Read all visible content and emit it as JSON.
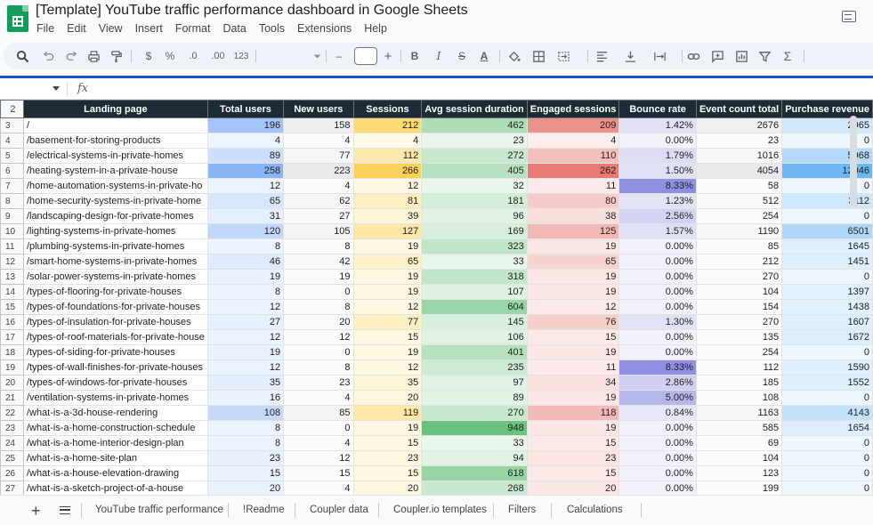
{
  "app": {
    "title": "[Template] YouTube traffic performance dashboard in Google Sheets",
    "menu": [
      "File",
      "Edit",
      "View",
      "Insert",
      "Format",
      "Data",
      "Tools",
      "Extensions",
      "Help"
    ]
  },
  "toolbar": {
    "icons": [
      "search-icon",
      "undo-icon",
      "redo-icon",
      "print-icon",
      "paint-format-icon",
      "currency-icon",
      "percent-icon",
      "decrease-decimal-icon",
      "increase-decimal-icon",
      "number-format-icon",
      "font-dropdown-icon",
      "zoom-minus-icon",
      "font-size-field",
      "zoom-plus-icon",
      "bold-icon",
      "italic-icon",
      "strikethrough-icon",
      "text-color-icon",
      "fill-color-icon",
      "borders-icon",
      "merge-icon",
      "align-icon",
      "valign-icon",
      "text-wrap-icon",
      "link-icon",
      "comment-icon",
      "chart-icon",
      "filter-icon",
      "functions-icon"
    ],
    "labels": {
      "currency": "$",
      "percent": "%",
      "dec_decimal": ".0",
      "inc_decimal": ".00",
      "number_format": "123",
      "minus": "–",
      "plus": "+",
      "bold": "B",
      "italic": "I",
      "strike": "S",
      "textcolor": "A",
      "sigma": "Σ"
    }
  },
  "formula_bar": {
    "fx": "fx"
  },
  "sheet": {
    "header_row_num": "2",
    "columns": [
      "Landing page",
      "Total users",
      "New users",
      "Sessions",
      "Avg session duration",
      "Engaged sessions",
      "Bounce rate",
      "Event count total",
      "Purchase revenue"
    ],
    "rows": [
      {
        "n": "3",
        "cells": [
          "/",
          "196",
          "158",
          "212",
          "462",
          "209",
          "1.42%",
          "2676",
          "2965"
        ]
      },
      {
        "n": "4",
        "cells": [
          "/basement-for-storing-products",
          "4",
          "4",
          "4",
          "23",
          "4",
          "0.00%",
          "23",
          "0"
        ]
      },
      {
        "n": "5",
        "cells": [
          "/electrical-systems-in-private-homes",
          "89",
          "77",
          "112",
          "272",
          "110",
          "1.79%",
          "1016",
          "5968"
        ]
      },
      {
        "n": "6",
        "cells": [
          "/heating-system-in-a-private-house",
          "258",
          "223",
          "266",
          "405",
          "262",
          "1.50%",
          "4054",
          "12946"
        ]
      },
      {
        "n": "7",
        "cells": [
          "/home-automation-systems-in-private-ho",
          "12",
          "4",
          "12",
          "32",
          "11",
          "8.33%",
          "58",
          "0"
        ]
      },
      {
        "n": "8",
        "cells": [
          "/home-security-systems-in-private-home",
          "65",
          "62",
          "81",
          "181",
          "80",
          "1.23%",
          "512",
          "3112"
        ]
      },
      {
        "n": "9",
        "cells": [
          "/landscaping-design-for-private-homes",
          "31",
          "27",
          "39",
          "96",
          "38",
          "2.56%",
          "254",
          "0"
        ]
      },
      {
        "n": "10",
        "cells": [
          "/lighting-systems-in-private-homes",
          "120",
          "105",
          "127",
          "169",
          "125",
          "1.57%",
          "1190",
          "6501"
        ]
      },
      {
        "n": "11",
        "cells": [
          "/plumbing-systems-in-private-homes",
          "8",
          "8",
          "19",
          "323",
          "19",
          "0.00%",
          "85",
          "1645"
        ]
      },
      {
        "n": "12",
        "cells": [
          "/smart-home-systems-in-private-homes",
          "46",
          "42",
          "65",
          "33",
          "65",
          "0.00%",
          "212",
          "1451"
        ]
      },
      {
        "n": "13",
        "cells": [
          "/solar-power-systems-in-private-homes",
          "19",
          "19",
          "19",
          "318",
          "19",
          "0.00%",
          "270",
          "0"
        ]
      },
      {
        "n": "14",
        "cells": [
          "/types-of-flooring-for-private-houses",
          "8",
          "0",
          "19",
          "107",
          "19",
          "0.00%",
          "104",
          "1397"
        ]
      },
      {
        "n": "15",
        "cells": [
          "/types-of-foundations-for-private-houses",
          "12",
          "8",
          "12",
          "604",
          "12",
          "0.00%",
          "154",
          "1438"
        ]
      },
      {
        "n": "16",
        "cells": [
          "/types-of-insulation-for-private-houses",
          "27",
          "20",
          "77",
          "145",
          "76",
          "1.30%",
          "270",
          "1607"
        ]
      },
      {
        "n": "17",
        "cells": [
          "/types-of-roof-materials-for-private-house",
          "12",
          "12",
          "15",
          "106",
          "15",
          "0.00%",
          "135",
          "1672"
        ]
      },
      {
        "n": "18",
        "cells": [
          "/types-of-siding-for-private-houses",
          "19",
          "0",
          "19",
          "401",
          "19",
          "0.00%",
          "254",
          "0"
        ]
      },
      {
        "n": "19",
        "cells": [
          "/types-of-wall-finishes-for-private-houses",
          "12",
          "8",
          "12",
          "235",
          "11",
          "8.33%",
          "112",
          "1590"
        ]
      },
      {
        "n": "20",
        "cells": [
          "/types-of-windows-for-private-houses",
          "35",
          "23",
          "35",
          "97",
          "34",
          "2.86%",
          "185",
          "1552"
        ]
      },
      {
        "n": "21",
        "cells": [
          "/ventilation-systems-in-private-homes",
          "16",
          "4",
          "20",
          "89",
          "19",
          "5.00%",
          "108",
          "0"
        ]
      },
      {
        "n": "22",
        "cells": [
          "/what-is-a-3d-house-rendering",
          "108",
          "85",
          "119",
          "270",
          "118",
          "0.84%",
          "1163",
          "4143"
        ]
      },
      {
        "n": "23",
        "cells": [
          "/what-is-a-home-construction-schedule",
          "8",
          "0",
          "19",
          "948",
          "19",
          "0.00%",
          "585",
          "1654"
        ]
      },
      {
        "n": "24",
        "cells": [
          "/what-is-a-home-interior-design-plan",
          "8",
          "4",
          "15",
          "33",
          "15",
          "0.00%",
          "69",
          "0"
        ]
      },
      {
        "n": "25",
        "cells": [
          "/what-is-a-home-site-plan",
          "23",
          "12",
          "23",
          "94",
          "23",
          "0.00%",
          "104",
          "0"
        ]
      },
      {
        "n": "26",
        "cells": [
          "/what-is-a-house-elevation-drawing",
          "15",
          "15",
          "15",
          "618",
          "15",
          "0.00%",
          "123",
          "0"
        ]
      },
      {
        "n": "27",
        "cells": [
          "/what-is-a-sketch-project-of-a-house",
          "20",
          "4",
          "20",
          "268",
          "20",
          "0.00%",
          "199",
          "0"
        ]
      }
    ],
    "scale_colors": {
      "Total users": "#8ab4f8",
      "New users": "#e8eaed",
      "Sessions": "#fbd35a",
      "Avg session duration": "#6bc27d",
      "Engaged sessions": "#e67c73",
      "Bounce rate": "#8e8fe0",
      "Event count total": "#e8eaed",
      "Purchase revenue": "#6fb8f5"
    }
  },
  "tabs": {
    "add_icon": "+",
    "items": [
      "YouTube traffic performance",
      "!Readme",
      "Coupler data",
      "Coupler.io templates",
      "Filters",
      "Calculations"
    ]
  }
}
